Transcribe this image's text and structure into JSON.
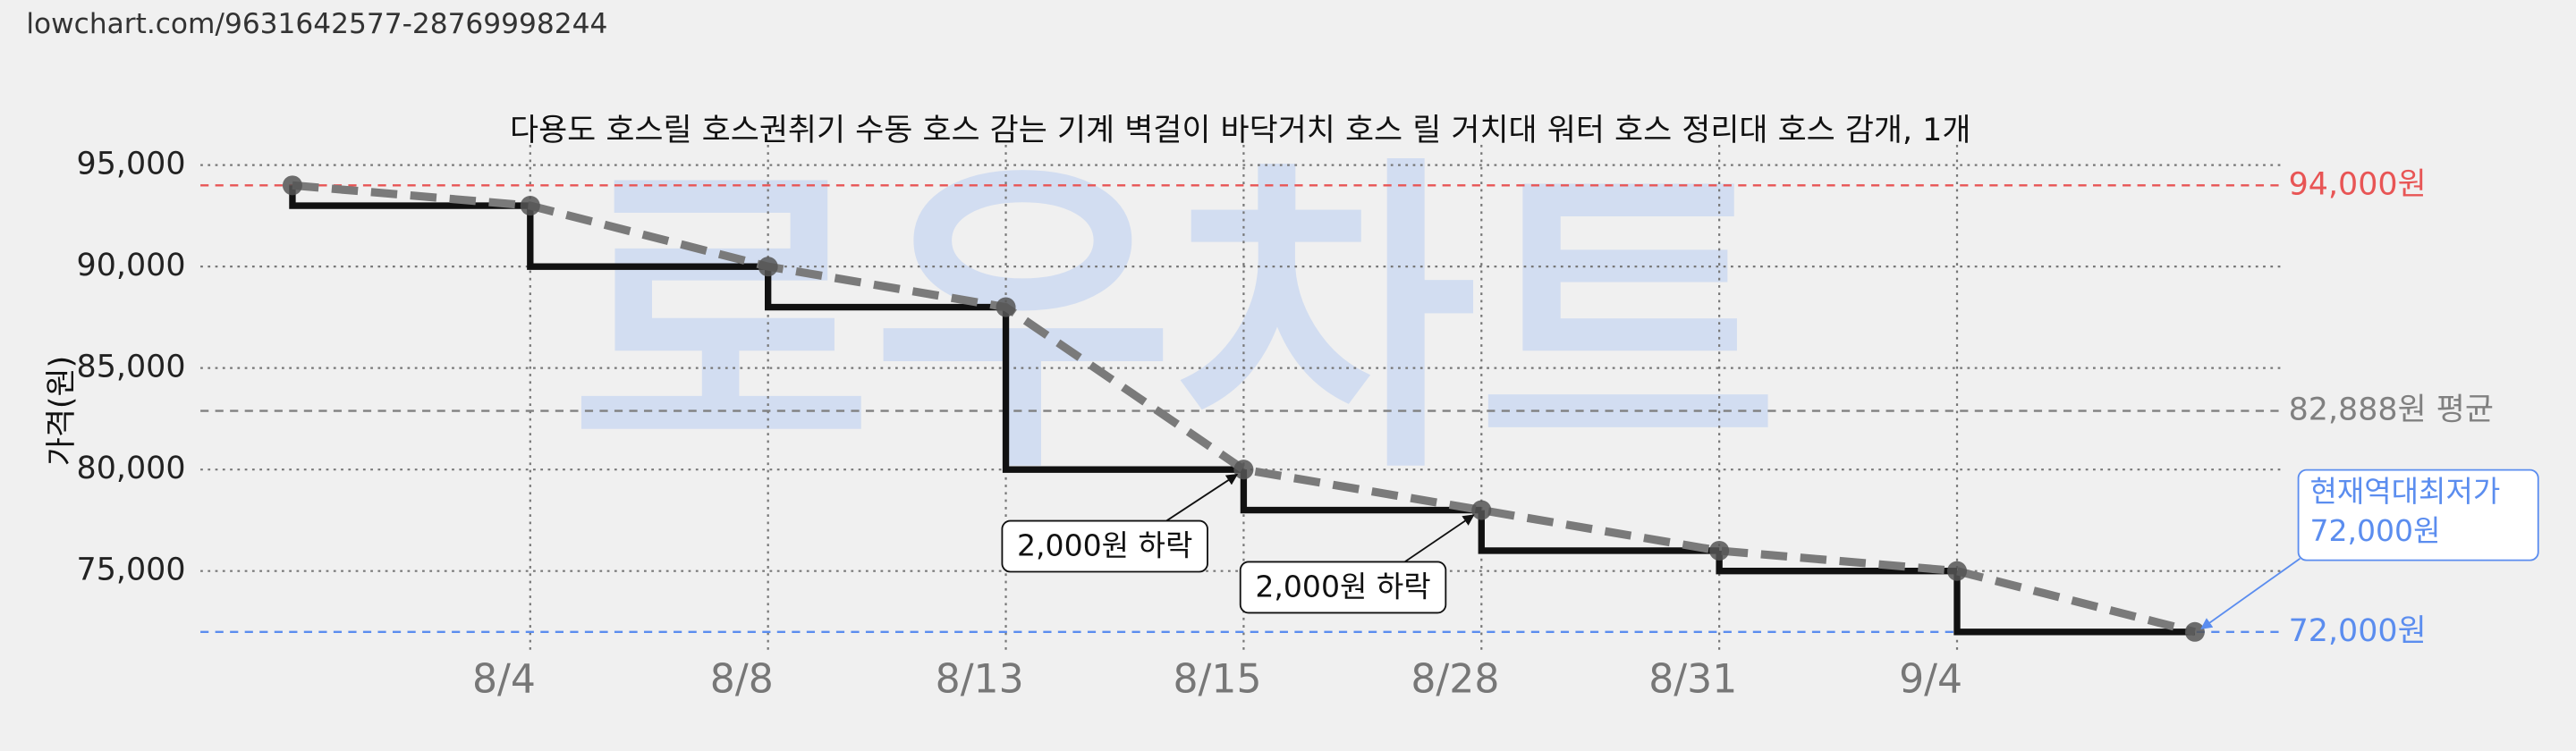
{
  "url": "lowchart.com/9631642577-28769998244",
  "chart_data": {
    "type": "step-line",
    "title": "다용도 호스릴 호스권취기 수동 호스 감는 기계 벽걸이 바닥거치 호스 릴 거치대 워터 호스 정리대 호스 감개, 1개",
    "watermark": "로우차트",
    "y_label": "가격(원)",
    "categories": [
      null,
      "8/4",
      "8/8",
      "8/13",
      "8/15",
      "8/28",
      "8/31",
      "9/4",
      null
    ],
    "values": [
      94000,
      93000,
      90000,
      88000,
      80000,
      78000,
      76000,
      75000,
      72000
    ],
    "color": "#111111",
    "trend_color": "#7a7a7a",
    "ylim": [
      71000,
      96000
    ],
    "yticks": [
      {
        "value": 75000,
        "label": "75,000"
      },
      {
        "value": 80000,
        "label": "80,000"
      },
      {
        "value": 85000,
        "label": "85,000"
      },
      {
        "value": 90000,
        "label": "90,000"
      },
      {
        "value": 95000,
        "label": "95,000"
      }
    ],
    "grid": true,
    "reference_lines": [
      {
        "value": 94000,
        "label": "94,000원",
        "color": "#e85555"
      },
      {
        "value": 82888,
        "label": "82,888원 평균",
        "color": "#808080"
      },
      {
        "value": 72000,
        "label": "72,000원",
        "color": "#5b8def"
      }
    ],
    "annotations": [
      "2,000원 하락",
      "2,000원 하락"
    ],
    "callout": [
      "현재역대최저가",
      "72,000원"
    ]
  }
}
